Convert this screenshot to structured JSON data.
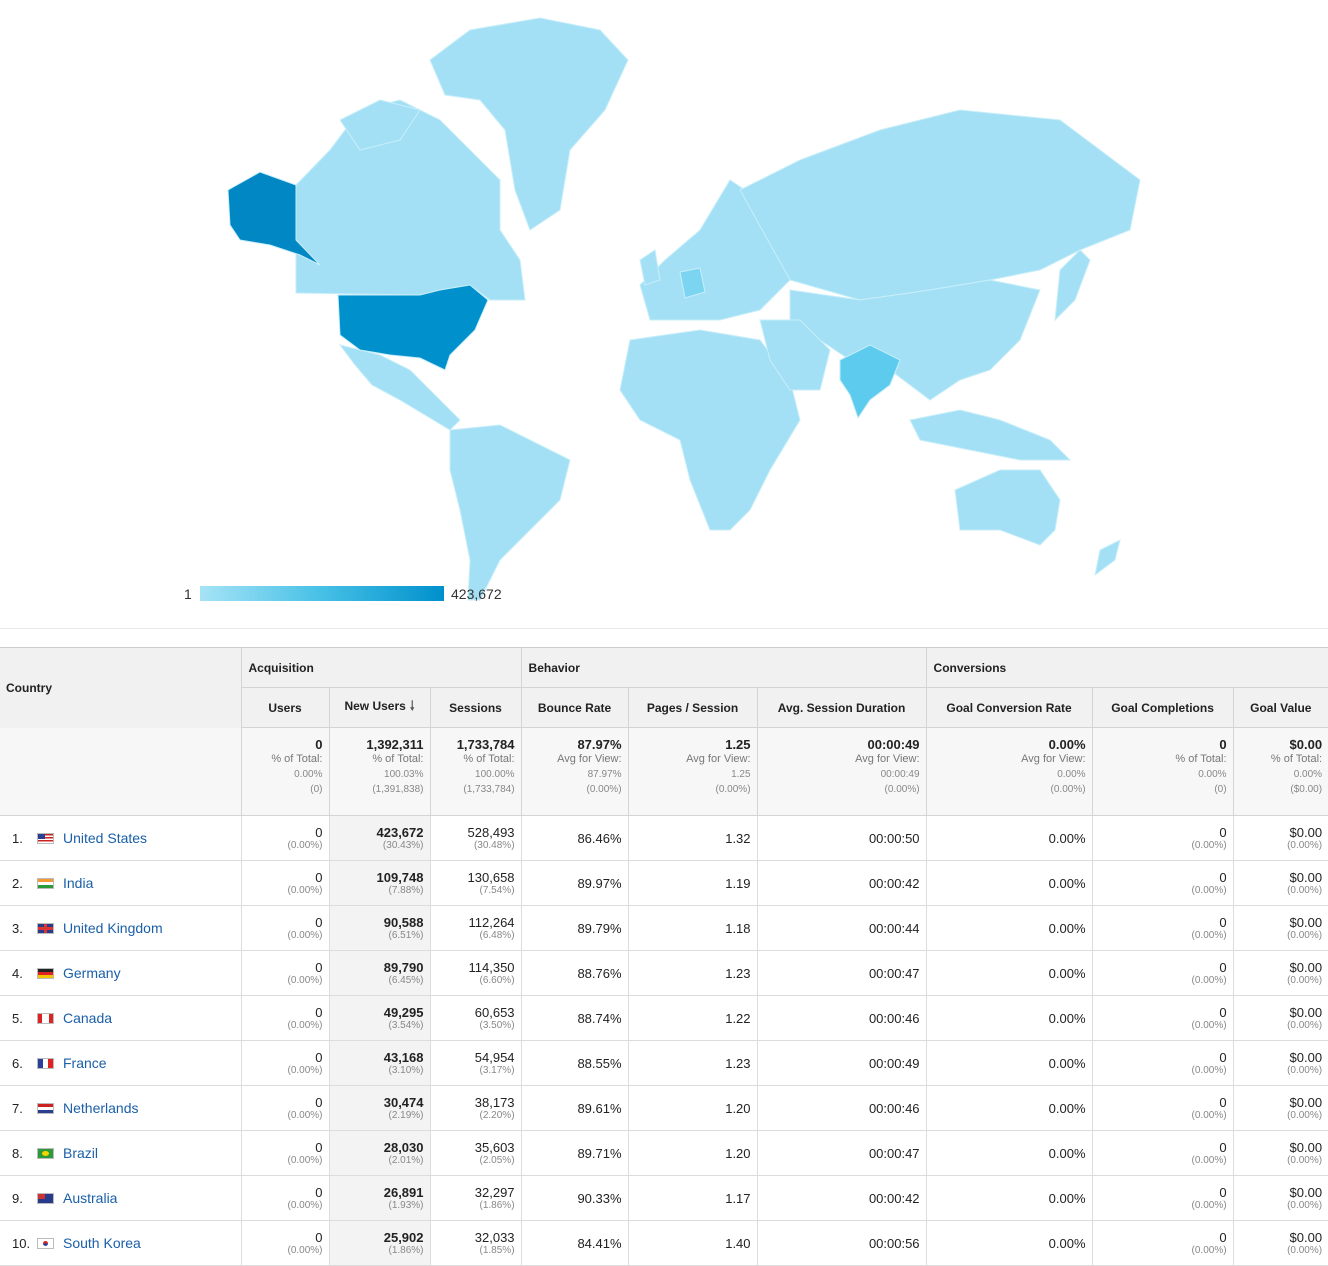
{
  "map": {
    "legend_min": "1",
    "legend_max": "423,672",
    "colors": {
      "low": "#a6e3f6",
      "mid": "#46c0e6",
      "high": "#0090cc",
      "darkest": "#0087c4"
    }
  },
  "table": {
    "country_header": "Country",
    "groups": {
      "acquisition": "Acquisition",
      "behavior": "Behavior",
      "conversions": "Conversions"
    },
    "columns": {
      "users": "Users",
      "new_users": "New Users",
      "sessions": "Sessions",
      "bounce_rate": "Bounce Rate",
      "pages_session": "Pages / Session",
      "avg_duration": "Avg. Session Duration",
      "goal_conv_rate": "Goal Conversion Rate",
      "goal_completions": "Goal Completions",
      "goal_value": "Goal Value"
    },
    "totals": {
      "users": {
        "v": "0",
        "l1": "% of Total:",
        "l2": "0.00%",
        "l3": "(0)"
      },
      "new_users": {
        "v": "1,392,311",
        "l1": "% of Total:",
        "l2": "100.03%",
        "l3": "(1,391,838)"
      },
      "sessions": {
        "v": "1,733,784",
        "l1": "% of Total:",
        "l2": "100.00%",
        "l3": "(1,733,784)"
      },
      "bounce_rate": {
        "v": "87.97%",
        "l1": "Avg for View:",
        "l2": "87.97%",
        "l3": "(0.00%)"
      },
      "pages_session": {
        "v": "1.25",
        "l1": "Avg for View:",
        "l2": "1.25",
        "l3": "(0.00%)"
      },
      "avg_duration": {
        "v": "00:00:49",
        "l1": "Avg for View:",
        "l2": "00:00:49",
        "l3": "(0.00%)"
      },
      "goal_conv_rate": {
        "v": "0.00%",
        "l1": "Avg for View:",
        "l2": "0.00%",
        "l3": "(0.00%)"
      },
      "goal_completions": {
        "v": "0",
        "l1": "% of Total:",
        "l2": "0.00%",
        "l3": "(0)"
      },
      "goal_value": {
        "v": "$0.00",
        "l1": "% of Total:",
        "l2": "0.00%",
        "l3": "($0.00)"
      }
    },
    "rows": [
      {
        "rank": "1.",
        "flag": "us",
        "country": "United States",
        "users": "0",
        "users_pct": "(0.00%)",
        "new_users": "423,672",
        "new_users_pct": "(30.43%)",
        "sessions": "528,493",
        "sessions_pct": "(30.48%)",
        "bounce": "86.46%",
        "pages": "1.32",
        "duration": "00:00:50",
        "gcr": "0.00%",
        "gc": "0",
        "gc_pct": "(0.00%)",
        "gv": "$0.00",
        "gv_pct": "(0.00%)"
      },
      {
        "rank": "2.",
        "flag": "in",
        "country": "India",
        "users": "0",
        "users_pct": "(0.00%)",
        "new_users": "109,748",
        "new_users_pct": "(7.88%)",
        "sessions": "130,658",
        "sessions_pct": "(7.54%)",
        "bounce": "89.97%",
        "pages": "1.19",
        "duration": "00:00:42",
        "gcr": "0.00%",
        "gc": "0",
        "gc_pct": "(0.00%)",
        "gv": "$0.00",
        "gv_pct": "(0.00%)"
      },
      {
        "rank": "3.",
        "flag": "gb",
        "country": "United Kingdom",
        "users": "0",
        "users_pct": "(0.00%)",
        "new_users": "90,588",
        "new_users_pct": "(6.51%)",
        "sessions": "112,264",
        "sessions_pct": "(6.48%)",
        "bounce": "89.79%",
        "pages": "1.18",
        "duration": "00:00:44",
        "gcr": "0.00%",
        "gc": "0",
        "gc_pct": "(0.00%)",
        "gv": "$0.00",
        "gv_pct": "(0.00%)"
      },
      {
        "rank": "4.",
        "flag": "de",
        "country": "Germany",
        "users": "0",
        "users_pct": "(0.00%)",
        "new_users": "89,790",
        "new_users_pct": "(6.45%)",
        "sessions": "114,350",
        "sessions_pct": "(6.60%)",
        "bounce": "88.76%",
        "pages": "1.23",
        "duration": "00:00:47",
        "gcr": "0.00%",
        "gc": "0",
        "gc_pct": "(0.00%)",
        "gv": "$0.00",
        "gv_pct": "(0.00%)"
      },
      {
        "rank": "5.",
        "flag": "ca",
        "country": "Canada",
        "users": "0",
        "users_pct": "(0.00%)",
        "new_users": "49,295",
        "new_users_pct": "(3.54%)",
        "sessions": "60,653",
        "sessions_pct": "(3.50%)",
        "bounce": "88.74%",
        "pages": "1.22",
        "duration": "00:00:46",
        "gcr": "0.00%",
        "gc": "0",
        "gc_pct": "(0.00%)",
        "gv": "$0.00",
        "gv_pct": "(0.00%)"
      },
      {
        "rank": "6.",
        "flag": "fr",
        "country": "France",
        "users": "0",
        "users_pct": "(0.00%)",
        "new_users": "43,168",
        "new_users_pct": "(3.10%)",
        "sessions": "54,954",
        "sessions_pct": "(3.17%)",
        "bounce": "88.55%",
        "pages": "1.23",
        "duration": "00:00:49",
        "gcr": "0.00%",
        "gc": "0",
        "gc_pct": "(0.00%)",
        "gv": "$0.00",
        "gv_pct": "(0.00%)"
      },
      {
        "rank": "7.",
        "flag": "nl",
        "country": "Netherlands",
        "users": "0",
        "users_pct": "(0.00%)",
        "new_users": "30,474",
        "new_users_pct": "(2.19%)",
        "sessions": "38,173",
        "sessions_pct": "(2.20%)",
        "bounce": "89.61%",
        "pages": "1.20",
        "duration": "00:00:46",
        "gcr": "0.00%",
        "gc": "0",
        "gc_pct": "(0.00%)",
        "gv": "$0.00",
        "gv_pct": "(0.00%)"
      },
      {
        "rank": "8.",
        "flag": "br",
        "country": "Brazil",
        "users": "0",
        "users_pct": "(0.00%)",
        "new_users": "28,030",
        "new_users_pct": "(2.01%)",
        "sessions": "35,603",
        "sessions_pct": "(2.05%)",
        "bounce": "89.71%",
        "pages": "1.20",
        "duration": "00:00:47",
        "gcr": "0.00%",
        "gc": "0",
        "gc_pct": "(0.00%)",
        "gv": "$0.00",
        "gv_pct": "(0.00%)"
      },
      {
        "rank": "9.",
        "flag": "au",
        "country": "Australia",
        "users": "0",
        "users_pct": "(0.00%)",
        "new_users": "26,891",
        "new_users_pct": "(1.93%)",
        "sessions": "32,297",
        "sessions_pct": "(1.86%)",
        "bounce": "90.33%",
        "pages": "1.17",
        "duration": "00:00:42",
        "gcr": "0.00%",
        "gc": "0",
        "gc_pct": "(0.00%)",
        "gv": "$0.00",
        "gv_pct": "(0.00%)"
      },
      {
        "rank": "10.",
        "flag": "kr",
        "country": "South Korea",
        "users": "0",
        "users_pct": "(0.00%)",
        "new_users": "25,902",
        "new_users_pct": "(1.86%)",
        "sessions": "32,033",
        "sessions_pct": "(1.85%)",
        "bounce": "84.41%",
        "pages": "1.40",
        "duration": "00:00:56",
        "gcr": "0.00%",
        "gc": "0",
        "gc_pct": "(0.00%)",
        "gv": "$0.00",
        "gv_pct": "(0.00%)"
      }
    ]
  }
}
